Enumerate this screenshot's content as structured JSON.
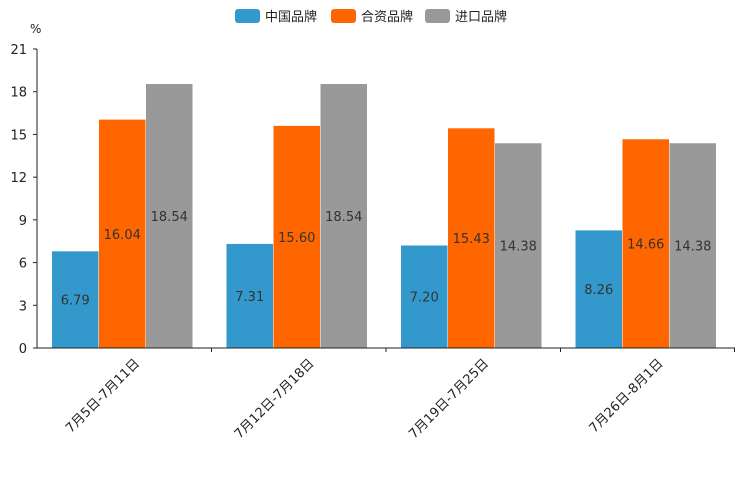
{
  "chart_data": {
    "type": "bar",
    "title": "",
    "unit": "%",
    "categories": [
      "7月5日-7月11日",
      "7月12日-7月18日",
      "7月19日-7月25日",
      "7月26日-8月1日"
    ],
    "series": [
      {
        "name": "中国品牌",
        "color": "#3399cc",
        "values": [
          6.79,
          7.31,
          7.2,
          8.26
        ],
        "labels": [
          "6.79",
          "7.31",
          "7.20",
          "8.26"
        ]
      },
      {
        "name": "合资品牌",
        "color": "#ff6600",
        "values": [
          16.04,
          15.6,
          15.43,
          14.66
        ],
        "labels": [
          "16.04",
          "15.60",
          "15.43",
          "14.66"
        ]
      },
      {
        "name": "进口品牌",
        "color": "#999999",
        "values": [
          18.54,
          18.54,
          14.38,
          14.38
        ],
        "labels": [
          "18.54",
          "18.54",
          "14.38",
          "14.38"
        ]
      }
    ],
    "yticks": [
      0,
      3,
      6,
      9,
      12,
      15,
      18,
      21
    ],
    "ytick_labels": [
      "0",
      "3",
      "6",
      "9",
      "12",
      "15",
      "18",
      "21"
    ],
    "ylim": [
      0,
      21
    ],
    "xlabel": "",
    "ylabel": "%",
    "legend_position": "top-center",
    "grid": false
  }
}
